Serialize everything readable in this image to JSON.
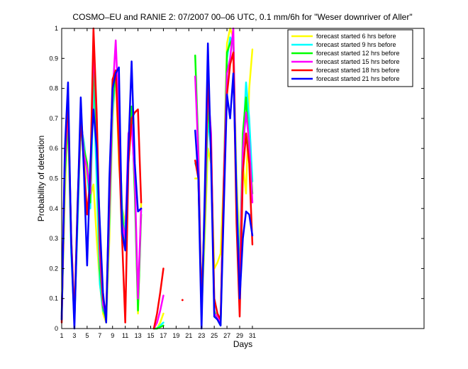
{
  "chart_data": {
    "type": "line",
    "title": "COSMO–EU and RANIE 2: 07/2007 00–06 UTC, 0.1 mm/6h for \"Weser downriver of Aller\"",
    "xlabel": "Days",
    "ylabel": "Probability of detection",
    "xlim": [
      1,
      58
    ],
    "ylim": [
      0,
      1
    ],
    "xticks": [
      1,
      3,
      5,
      7,
      9,
      11,
      13,
      15,
      17,
      19,
      21,
      23,
      25,
      27,
      29,
      31
    ],
    "yticks": [
      0,
      0.1,
      0.2,
      0.3,
      0.4,
      0.5,
      0.6,
      0.7,
      0.8,
      0.9,
      1
    ],
    "ytick_labels": [
      "0",
      "0.1",
      "0.2",
      "0.3",
      "0.4",
      "0.5",
      "0.6",
      "0.7",
      "0.8",
      "0.9",
      "1"
    ],
    "grid": false,
    "legend_position": "top-right",
    "series": [
      {
        "name": "forecast started 6 hrs before",
        "color": "#ffff00",
        "x": [
          1,
          1.5,
          2,
          2.5,
          3,
          3.5,
          4,
          4.5,
          5,
          5.5,
          6,
          6.5,
          7,
          7.5,
          8,
          8.5,
          9,
          9.5,
          10,
          10.5,
          11,
          11.5,
          12,
          12.5,
          13,
          13.5,
          null,
          15.5,
          16,
          16.5,
          17,
          null,
          22,
          22.5,
          23,
          23.5,
          24,
          24.5,
          25,
          25.5,
          26,
          26.5,
          27,
          27.5,
          28,
          28.5,
          29,
          29.5,
          30,
          30.5,
          31
        ],
        "y": [
          0.05,
          0.45,
          0.72,
          0.3,
          0.05,
          0.4,
          0.65,
          0.6,
          0.5,
          0.44,
          0.48,
          0.3,
          0.15,
          0.05,
          0.02,
          0.3,
          0.7,
          0.85,
          0.55,
          0.4,
          0.35,
          0.55,
          0.7,
          0.5,
          0.05,
          0.42,
          null,
          0,
          0,
          0.02,
          0.05,
          null,
          0.5,
          0.5,
          0.05,
          0.3,
          0.6,
          0.55,
          0.2,
          0.22,
          0.25,
          0.5,
          0.95,
          1.0,
          0.97,
          0.5,
          0.25,
          0.55,
          0.45,
          0.8,
          0.93
        ]
      },
      {
        "name": "forecast started 9 hrs before",
        "color": "#00ffff",
        "x": [
          1,
          1.5,
          2,
          2.5,
          3,
          3.5,
          4,
          4.5,
          5,
          5.5,
          6,
          6.5,
          7,
          7.5,
          8,
          8.5,
          9,
          9.5,
          10,
          10.5,
          11,
          11.5,
          12,
          12.5,
          13,
          13.5,
          null,
          15.5,
          16,
          16.5,
          17,
          null,
          22,
          22.5,
          23,
          23.5,
          24,
          24.5,
          25,
          25.5,
          26,
          26.5,
          27,
          27.5,
          28,
          28.5,
          29,
          29.5,
          30,
          30.5,
          31
        ],
        "y": [
          0.05,
          0.5,
          0.72,
          0.25,
          0.03,
          0.35,
          0.68,
          0.62,
          0.52,
          0.4,
          0.8,
          0.5,
          0.15,
          0.06,
          0.04,
          0.35,
          0.72,
          0.85,
          0.7,
          0.4,
          0.3,
          0.6,
          0.72,
          0.48,
          0.08,
          0.4,
          null,
          0,
          0,
          0.01,
          0.02,
          null,
          0.55,
          0.52,
          0.05,
          0.35,
          0.7,
          0.6,
          0.1,
          0.05,
          0.02,
          0.45,
          0.9,
          0.97,
          0.95,
          0.45,
          0.2,
          0.6,
          0.82,
          0.7,
          0.49
        ]
      },
      {
        "name": "forecast started 12 hrs before",
        "color": "#00ff00",
        "x": [
          1,
          1.5,
          2,
          2.5,
          3,
          3.5,
          4,
          4.5,
          5,
          5.5,
          6,
          6.5,
          7,
          7.5,
          8,
          8.5,
          9,
          9.5,
          10,
          10.5,
          11,
          11.5,
          12,
          12.5,
          13,
          13.5,
          null,
          15.5,
          16,
          16.5,
          17,
          null,
          22,
          22.5,
          23,
          23.5,
          24,
          24.5,
          25,
          25.5,
          26,
          26.5,
          27,
          27.5,
          28,
          28.5,
          29,
          29.5,
          30,
          30.5,
          31
        ],
        "y": [
          0.03,
          0.52,
          0.7,
          0.28,
          0.02,
          0.38,
          0.7,
          0.6,
          0.55,
          0.42,
          0.9,
          0.65,
          0.2,
          0.07,
          0.03,
          0.38,
          0.75,
          0.86,
          0.72,
          0.38,
          0.28,
          0.62,
          0.74,
          0.45,
          0.06,
          0.38,
          null,
          0,
          0,
          0.005,
          0.01,
          null,
          0.91,
          0.6,
          0.06,
          0.38,
          0.75,
          0.62,
          0.06,
          0.03,
          0.01,
          0.5,
          0.92,
          0.95,
          0.97,
          0.4,
          0.18,
          0.65,
          0.77,
          0.6,
          0.45
        ]
      },
      {
        "name": "forecast started 15 hrs before",
        "color": "#ff00ff",
        "x": [
          1,
          1.5,
          2,
          2.5,
          3,
          3.5,
          4,
          4.5,
          5,
          5.5,
          6,
          6.5,
          7,
          7.5,
          8,
          8.5,
          9,
          9.5,
          10,
          10.5,
          11,
          11.5,
          12,
          12.5,
          13,
          13.5,
          null,
          15.5,
          16,
          16.5,
          17,
          null,
          22,
          22.5,
          23,
          23.5,
          24,
          24.5,
          25,
          25.5,
          26,
          26.5,
          27,
          27.5,
          28,
          28.5,
          29,
          29.5,
          30,
          30.5,
          31
        ],
        "y": [
          0.04,
          0.55,
          0.74,
          0.3,
          0.04,
          0.4,
          0.72,
          0.58,
          0.53,
          0.45,
          0.95,
          0.7,
          0.25,
          0.08,
          0.04,
          0.4,
          0.78,
          0.96,
          0.7,
          0.35,
          0.3,
          0.65,
          0.68,
          0.5,
          0.1,
          0.4,
          null,
          0,
          0.02,
          0.06,
          0.11,
          null,
          0.84,
          0.58,
          0.05,
          0.4,
          0.8,
          0.65,
          0.05,
          0.04,
          0.02,
          0.5,
          0.85,
          0.9,
          1.0,
          0.38,
          0.15,
          0.6,
          0.72,
          0.62,
          0.42
        ]
      },
      {
        "name": "forecast started 18 hrs before",
        "color": "#ff0000",
        "x": [
          1,
          1.5,
          2,
          2.5,
          3,
          3.5,
          4,
          4.5,
          5,
          5.5,
          6,
          6.5,
          7,
          7.5,
          8,
          8.5,
          9,
          9.5,
          10,
          10.5,
          11,
          11.5,
          12,
          12.5,
          13,
          13.5,
          null,
          15.5,
          16,
          16.5,
          17,
          null,
          20,
          null,
          22,
          22.5,
          23,
          23.5,
          24,
          24.5,
          25,
          25.5,
          26,
          26.5,
          27,
          27.5,
          28,
          28.5,
          29,
          29.5,
          30,
          30.5,
          31
        ],
        "y": [
          0.02,
          0.58,
          0.76,
          0.3,
          0.03,
          0.42,
          0.7,
          0.55,
          0.38,
          0.5,
          1.0,
          0.72,
          0.3,
          0.1,
          0.05,
          0.45,
          0.83,
          0.86,
          0.6,
          0.3,
          0.02,
          0.55,
          0.7,
          0.72,
          0.73,
          0.42,
          null,
          0,
          0.05,
          0.12,
          0.2,
          null,
          0.095,
          null,
          0.56,
          0.5,
          0.08,
          0.4,
          0.85,
          0.6,
          0.1,
          0.05,
          0.03,
          0.48,
          0.78,
          0.88,
          0.92,
          0.35,
          0.04,
          0.52,
          0.65,
          0.55,
          0.28
        ]
      },
      {
        "name": "forecast started 21 hrs before",
        "color": "#0000ff",
        "x": [
          1,
          1.5,
          2,
          2.5,
          3,
          3.5,
          4,
          4.5,
          5,
          5.5,
          6,
          6.5,
          7,
          7.5,
          8,
          8.5,
          9,
          9.5,
          10,
          10.5,
          11,
          11.5,
          12,
          12.5,
          13,
          13.5,
          null,
          22,
          22.5,
          23,
          23.5,
          24,
          24.5,
          25,
          25.5,
          26,
          26.5,
          27,
          27.5,
          28,
          28.5,
          29,
          29.5,
          30,
          30.5,
          31
        ],
        "y": [
          0.03,
          0.6,
          0.82,
          0.28,
          0,
          0.4,
          0.77,
          0.52,
          0.21,
          0.55,
          0.73,
          0.6,
          0.35,
          0.12,
          0.02,
          0.5,
          0.8,
          0.85,
          0.87,
          0.32,
          0.26,
          0.6,
          0.89,
          0.55,
          0.39,
          0.4,
          null,
          0.66,
          0.5,
          0,
          0.45,
          0.95,
          0.55,
          0.04,
          0.03,
          0.01,
          0.4,
          0.78,
          0.7,
          0.85,
          0.45,
          0.1,
          0.3,
          0.39,
          0.38,
          0.31
        ]
      }
    ]
  }
}
